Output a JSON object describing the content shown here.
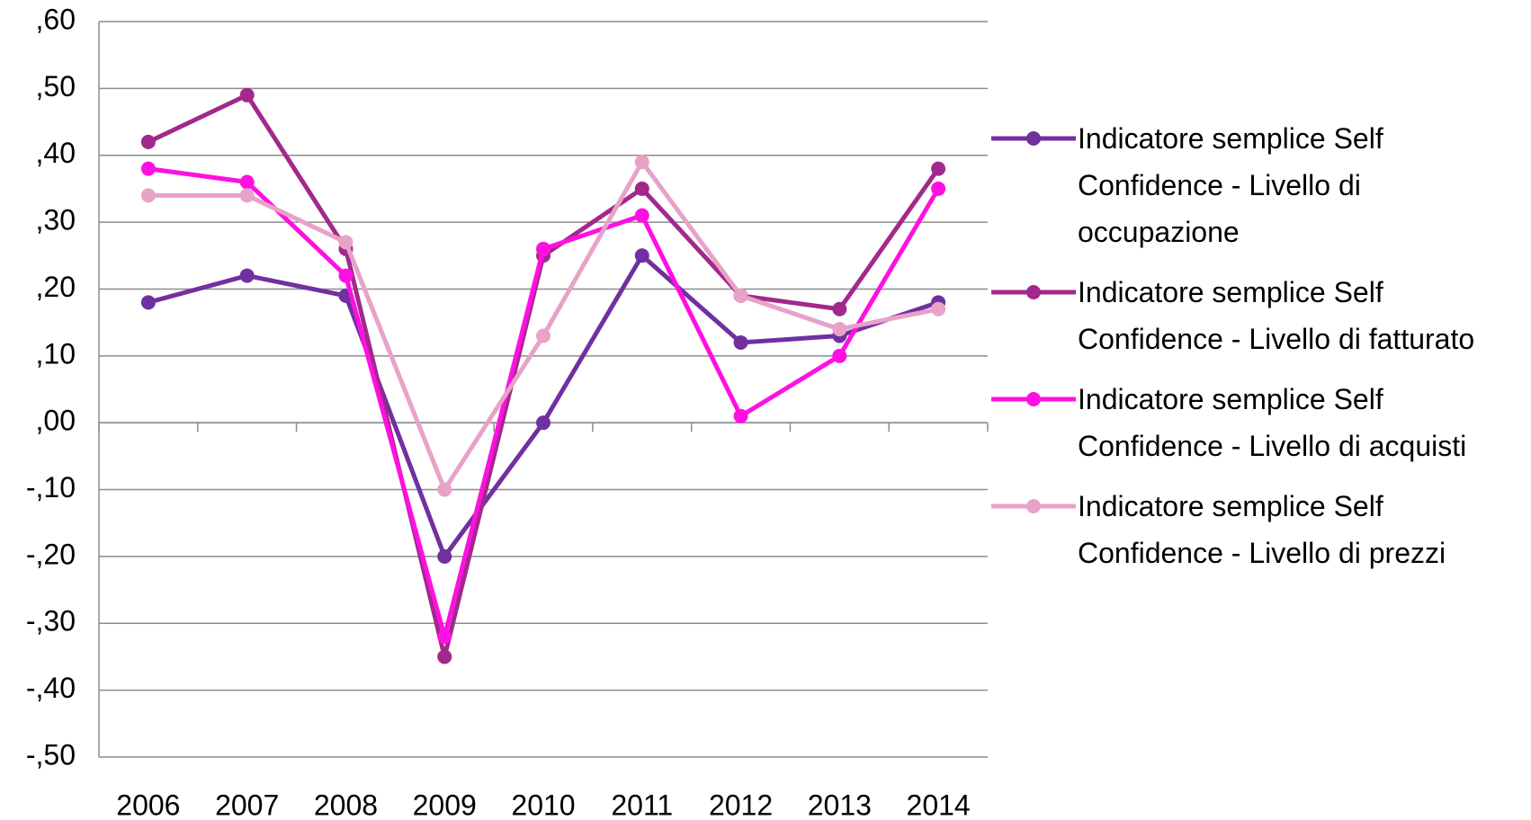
{
  "chart_data": {
    "type": "line",
    "categories": [
      "2006",
      "2007",
      "2008",
      "2009",
      "2010",
      "2011",
      "2012",
      "2013",
      "2014"
    ],
    "series": [
      {
        "name": "Indicatore semplice Self Confidence - Livello di occupazione",
        "color": "#7030a0",
        "values": [
          0.18,
          0.22,
          0.19,
          -0.2,
          0.0,
          0.25,
          0.12,
          0.13,
          0.18
        ]
      },
      {
        "name": "Indicatore semplice Self Confidence - Livello di fatturato",
        "color": "#a3288c",
        "values": [
          0.42,
          0.49,
          0.26,
          -0.35,
          0.25,
          0.35,
          0.19,
          0.17,
          0.38
        ]
      },
      {
        "name": "Indicatore semplice Self Confidence - Livello di acquisti",
        "color": "#ff10e0",
        "values": [
          0.38,
          0.36,
          0.22,
          -0.32,
          0.26,
          0.31,
          0.01,
          0.1,
          0.35
        ]
      },
      {
        "name": "Indicatore semplice Self Confidence - Livello di prezzi",
        "color": "#e8a2c8",
        "values": [
          0.34,
          0.34,
          0.27,
          -0.1,
          0.13,
          0.39,
          0.19,
          0.14,
          0.17
        ]
      }
    ],
    "ylim": [
      -0.5,
      0.6
    ],
    "yticks": [
      {
        "value": 0.6,
        "label": ",60"
      },
      {
        "value": 0.5,
        "label": ",50"
      },
      {
        "value": 0.4,
        "label": ",40"
      },
      {
        "value": 0.3,
        "label": ",30"
      },
      {
        "value": 0.2,
        "label": ",20"
      },
      {
        "value": 0.1,
        "label": ",10"
      },
      {
        "value": 0,
        "label": ",00"
      },
      {
        "value": -0.1,
        "label": "-,10"
      },
      {
        "value": -0.2,
        "label": "-,20"
      },
      {
        "value": -0.3,
        "label": "-,30"
      },
      {
        "value": -0.4,
        "label": "-,40"
      },
      {
        "value": -0.5,
        "label": "-,50"
      }
    ],
    "grid": true
  }
}
